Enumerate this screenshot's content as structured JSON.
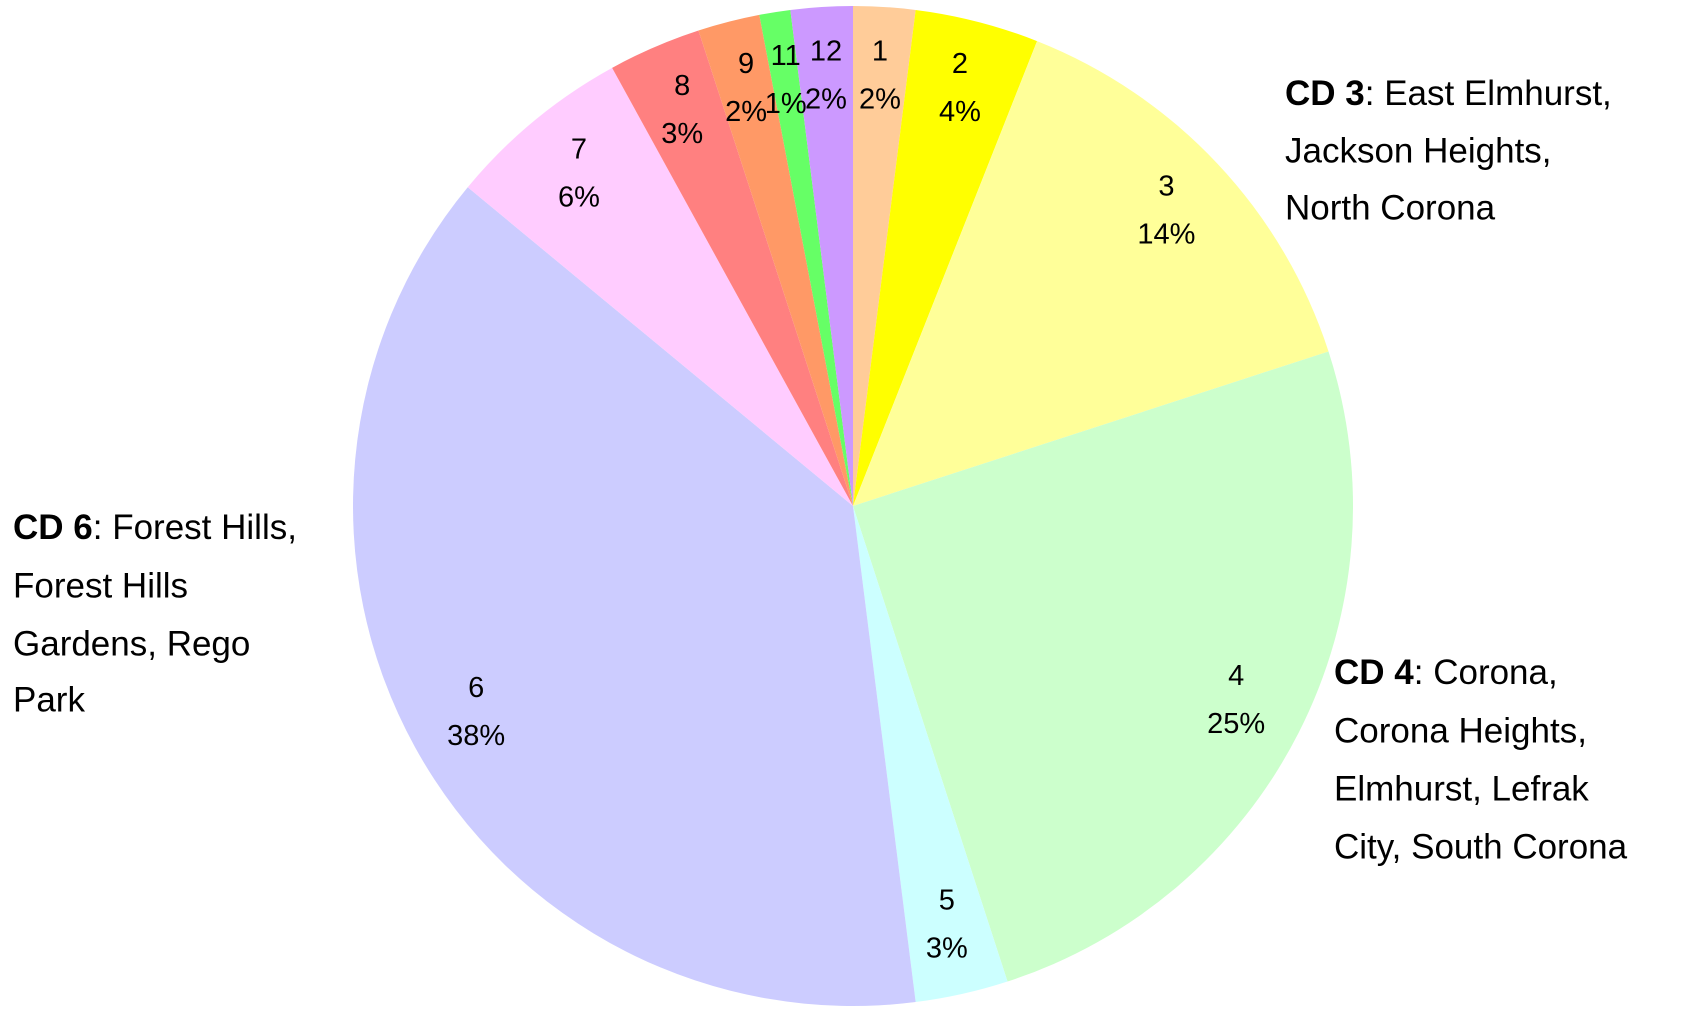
{
  "chart_data": {
    "type": "pie",
    "categories": [
      "1",
      "2",
      "3",
      "4",
      "5",
      "6",
      "7",
      "8",
      "9",
      "11",
      "12"
    ],
    "values": [
      2,
      4,
      14,
      25,
      3,
      38,
      6,
      3,
      2,
      1,
      2
    ],
    "value_labels": [
      "2%",
      "4%",
      "14%",
      "25%",
      "3%",
      "38%",
      "6%",
      "3%",
      "2%",
      "1%",
      "2%"
    ],
    "colors": [
      "#ffcc99",
      "#ffff00",
      "#ffff99",
      "#ccffcc",
      "#ccffff",
      "#ccccff",
      "#ffccff",
      "#ff8080",
      "#ff9966",
      "#66ff66",
      "#cc99ff"
    ],
    "annotations": [
      {
        "label": "CD 3",
        "lines": [
          ": East Elmhurst,",
          "Jackson Heights,",
          "North Corona"
        ]
      },
      {
        "label": "CD 4",
        "lines": [
          ": Corona,",
          "Corona Heights,",
          "Elmhurst, Lefrak",
          "City, South Corona"
        ]
      },
      {
        "label": "CD 6",
        "lines": [
          ": Forest Hills,",
          "Forest Hills",
          "Gardens, Rego",
          "Park"
        ]
      }
    ]
  }
}
